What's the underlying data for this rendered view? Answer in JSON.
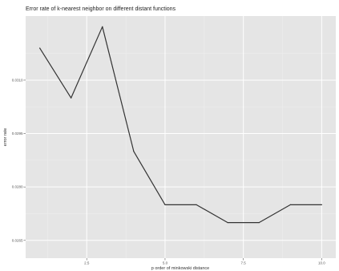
{
  "chart_data": {
    "type": "line",
    "title": "Error rate of k-nearest neighbor on different distant functions",
    "xlabel": "p order of minkowski distance",
    "ylabel": "error rate",
    "x": [
      1,
      2,
      3,
      4,
      5,
      6,
      7,
      8,
      9,
      10
    ],
    "series": [
      {
        "values": [
          0.0319,
          0.0305,
          0.0325,
          0.029,
          0.0275,
          0.0275,
          0.027,
          0.027,
          0.0275,
          0.0275
        ]
      }
    ],
    "xlim": [
      0.55,
      10.45
    ],
    "ylim": [
      0.026,
      0.0328
    ],
    "x_ticks": [
      2.5,
      5.0,
      7.5,
      10.0
    ],
    "x_tick_labels": [
      "2.5",
      "5.0",
      "7.5",
      "10.0"
    ],
    "y_ticks": [
      0.0265,
      0.028,
      0.0295,
      0.031
    ],
    "y_tick_labels": [
      "0.0265",
      "0.0280",
      "0.0295",
      "0.0310"
    ],
    "grid": true,
    "legend": "none",
    "colors": {
      "panel_background": "#e5e5e5",
      "grid_major": "#ffffff",
      "grid_minor": "#f0f0f0",
      "line": "#333333"
    }
  }
}
